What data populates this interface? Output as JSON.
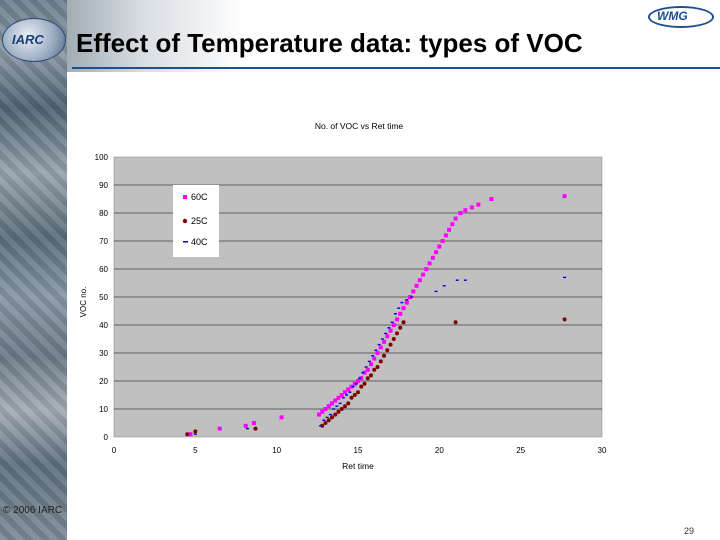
{
  "slide": {
    "title": "Effect of Temperature data: types of VOC",
    "copyright": "© 2006 IARC",
    "page_number": "29",
    "logo_left_text": "IARC",
    "logo_right_text": "WMG"
  },
  "chart_data": {
    "type": "scatter",
    "title": "No. of VOC vs Ret time",
    "xlabel": "Ret time",
    "ylabel": "VOC no.",
    "xlim": [
      0,
      30
    ],
    "ylim": [
      0,
      100
    ],
    "xticks": [
      "0",
      "5",
      "10",
      "15",
      "20",
      "25",
      "30"
    ],
    "yticks": [
      "0",
      "10",
      "20",
      "30",
      "40",
      "50",
      "60",
      "70",
      "80",
      "90",
      "100"
    ],
    "grid": "horizontal",
    "plot_background": "#c0c0c0",
    "legend_position": "top-left",
    "series": [
      {
        "name": "60C",
        "legend_label": "60C",
        "marker": "square",
        "color": "#ff00ff",
        "x": [
          4.7,
          6.5,
          8.1,
          8.6,
          10.3,
          12.6,
          12.8,
          13.0,
          13.2,
          13.4,
          13.6,
          13.8,
          14.0,
          14.2,
          14.4,
          14.6,
          14.8,
          15.0,
          15.2,
          15.4,
          15.6,
          15.8,
          16.0,
          16.2,
          16.4,
          16.6,
          16.8,
          17.0,
          17.2,
          17.4,
          17.6,
          17.8,
          18.0,
          18.2,
          18.4,
          18.6,
          18.8,
          19.0,
          19.2,
          19.4,
          19.6,
          19.8,
          20.0,
          20.2,
          20.4,
          20.6,
          20.8,
          21.0,
          21.3,
          21.6,
          22.0,
          22.4,
          23.2,
          27.7
        ],
        "y": [
          1,
          3,
          4,
          5,
          7,
          8,
          9,
          10,
          11,
          12,
          13,
          14,
          15,
          16,
          17,
          18,
          19,
          20,
          21,
          23,
          24,
          26,
          28,
          30,
          32,
          34,
          36,
          38,
          40,
          42,
          44,
          46,
          48,
          50,
          52,
          54,
          56,
          58,
          60,
          62,
          64,
          66,
          68,
          70,
          72,
          74,
          76,
          78,
          80,
          81,
          82,
          83,
          85,
          86
        ]
      },
      {
        "name": "25C",
        "legend_label": "25C",
        "marker": "circle",
        "color": "#800000",
        "x": [
          4.5,
          5.0,
          8.7,
          12.8,
          13.0,
          13.2,
          13.4,
          13.6,
          13.8,
          14.0,
          14.2,
          14.4,
          14.6,
          14.8,
          15.0,
          15.2,
          15.4,
          15.6,
          15.8,
          16.0,
          16.2,
          16.4,
          16.6,
          16.8,
          17.0,
          17.2,
          17.4,
          17.6,
          17.8,
          21.0,
          27.7
        ],
        "y": [
          1,
          2,
          3,
          4,
          5,
          6,
          7,
          8,
          9,
          10,
          11,
          12,
          14,
          15,
          16,
          18,
          19,
          21,
          22,
          24,
          25,
          27,
          29,
          31,
          33,
          35,
          37,
          39,
          41,
          41,
          42
        ]
      },
      {
        "name": "40C",
        "legend_label": "40C",
        "marker": "dash",
        "color": "#0000cc",
        "x": [
          5.0,
          8.2,
          12.7,
          12.9,
          13.1,
          13.3,
          13.5,
          13.7,
          13.9,
          14.1,
          14.3,
          14.5,
          14.7,
          14.9,
          15.1,
          15.3,
          15.5,
          15.7,
          15.9,
          16.1,
          16.3,
          16.5,
          16.7,
          16.9,
          17.1,
          17.3,
          17.5,
          17.7,
          18.0,
          18.3,
          19.8,
          20.3,
          21.1,
          21.6,
          27.7
        ],
        "y": [
          1,
          3,
          4,
          6,
          7,
          8,
          10,
          11,
          12,
          14,
          15,
          16,
          18,
          19,
          21,
          23,
          25,
          27,
          29,
          31,
          33,
          35,
          37,
          39,
          41,
          44,
          46,
          48,
          49,
          50,
          52,
          54,
          56,
          56,
          57
        ]
      }
    ]
  }
}
